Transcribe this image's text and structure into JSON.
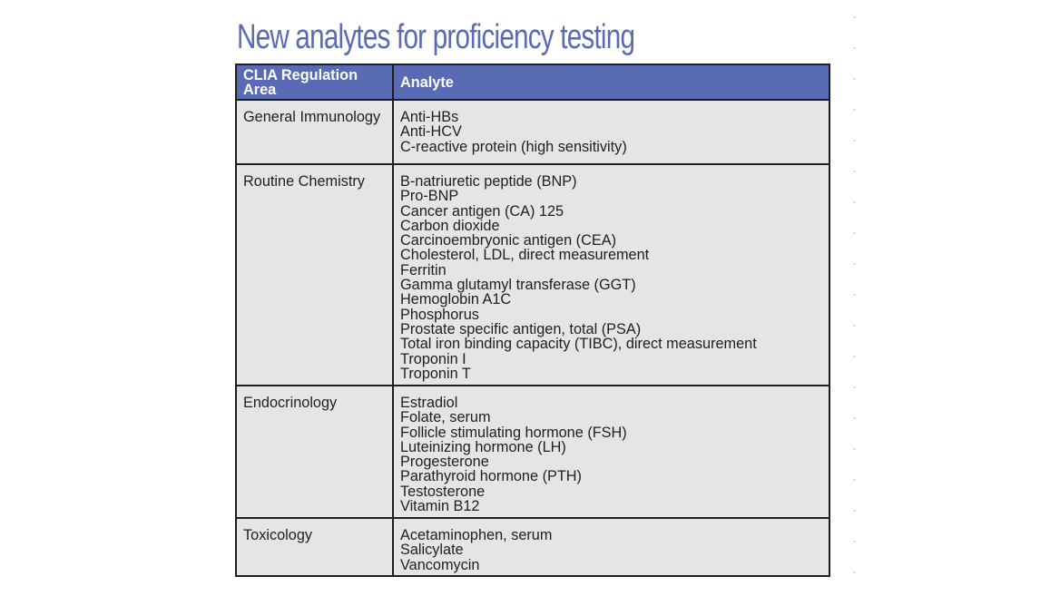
{
  "title": "New analytes for proficiency testing",
  "table": {
    "headers": [
      "CLIA Regulation Area",
      "Analyte"
    ],
    "rows": [
      {
        "area": "General Immunology",
        "analytes": [
          "Anti-HBs",
          "Anti-HCV",
          "C-reactive protein (high sensitivity)"
        ]
      },
      {
        "area": "Routine Chemistry",
        "analytes": [
          "B-natriuretic peptide (BNP)",
          "Pro-BNP",
          "Cancer antigen (CA) 125",
          "Carbon dioxide",
          "Carcinoembryonic antigen (CEA)",
          "Cholesterol, LDL, direct measurement",
          "Ferritin",
          "Gamma glutamyl transferase (GGT)",
          "Hemoglobin A1C",
          "Phosphorus",
          "Prostate specific antigen, total (PSA)",
          "Total iron binding capacity (TIBC), direct measurement",
          "Troponin I",
          "Troponin T"
        ]
      },
      {
        "area": "Endocrinology",
        "analytes": [
          "Estradiol",
          "Folate, serum",
          "Follicle stimulating hormone (FSH)",
          "Luteinizing hormone (LH)",
          "Progesterone",
          "Parathyroid hormone (PTH)",
          "Testosterone",
          "Vitamin B12"
        ]
      },
      {
        "area": "Toxicology",
        "analytes": [
          "Acetaminophen, serum",
          "Salicylate",
          "Vancomycin"
        ]
      }
    ]
  },
  "colors": {
    "accent": "#5a6bb5",
    "cell_background": "#e6e5e3",
    "border": "#1e1e1e"
  }
}
